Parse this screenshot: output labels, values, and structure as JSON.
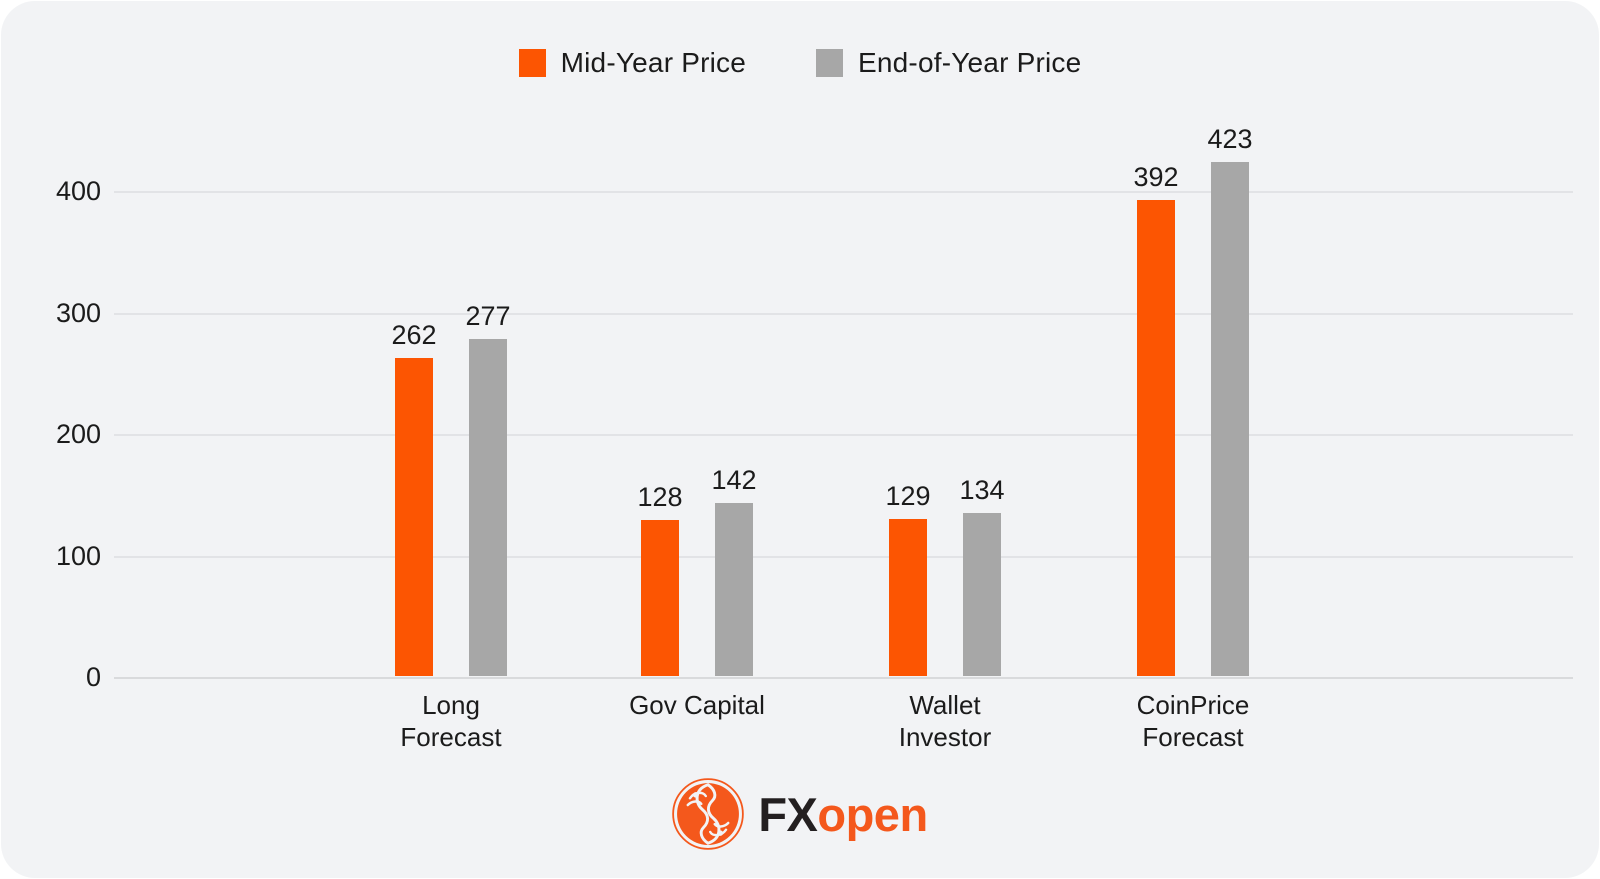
{
  "chart_data": {
    "type": "bar",
    "title": "",
    "xlabel": "",
    "ylabel": "",
    "categories": [
      "Long Forecast",
      "Gov Capital",
      "Wallet Investor",
      "CoinPrice Forecast"
    ],
    "series": [
      {
        "name": "Mid-Year Price",
        "color": "#FC5502",
        "values": [
          262,
          128,
          129,
          392
        ]
      },
      {
        "name": "End-of-Year Price",
        "color": "#A7A7A7",
        "values": [
          277,
          142,
          134,
          423
        ]
      }
    ],
    "ylim": [
      0,
      400
    ],
    "yticks": [
      0,
      100,
      200,
      300,
      400
    ],
    "grid": true,
    "legend_position": "top-center",
    "bar_value_labels": true
  },
  "colors": {
    "panel_bg": "#F2F3F5",
    "gridline": "#E2E3E6",
    "axis_zero_line": "#D9DADC",
    "text": "#1B1B1B"
  },
  "branding": {
    "logo_icon": "fxopen-emblem-icon",
    "logo_text_black": "FX",
    "logo_text_orange": "open",
    "logo_black_color": "#231F20",
    "logo_orange_color": "#F4581C"
  }
}
